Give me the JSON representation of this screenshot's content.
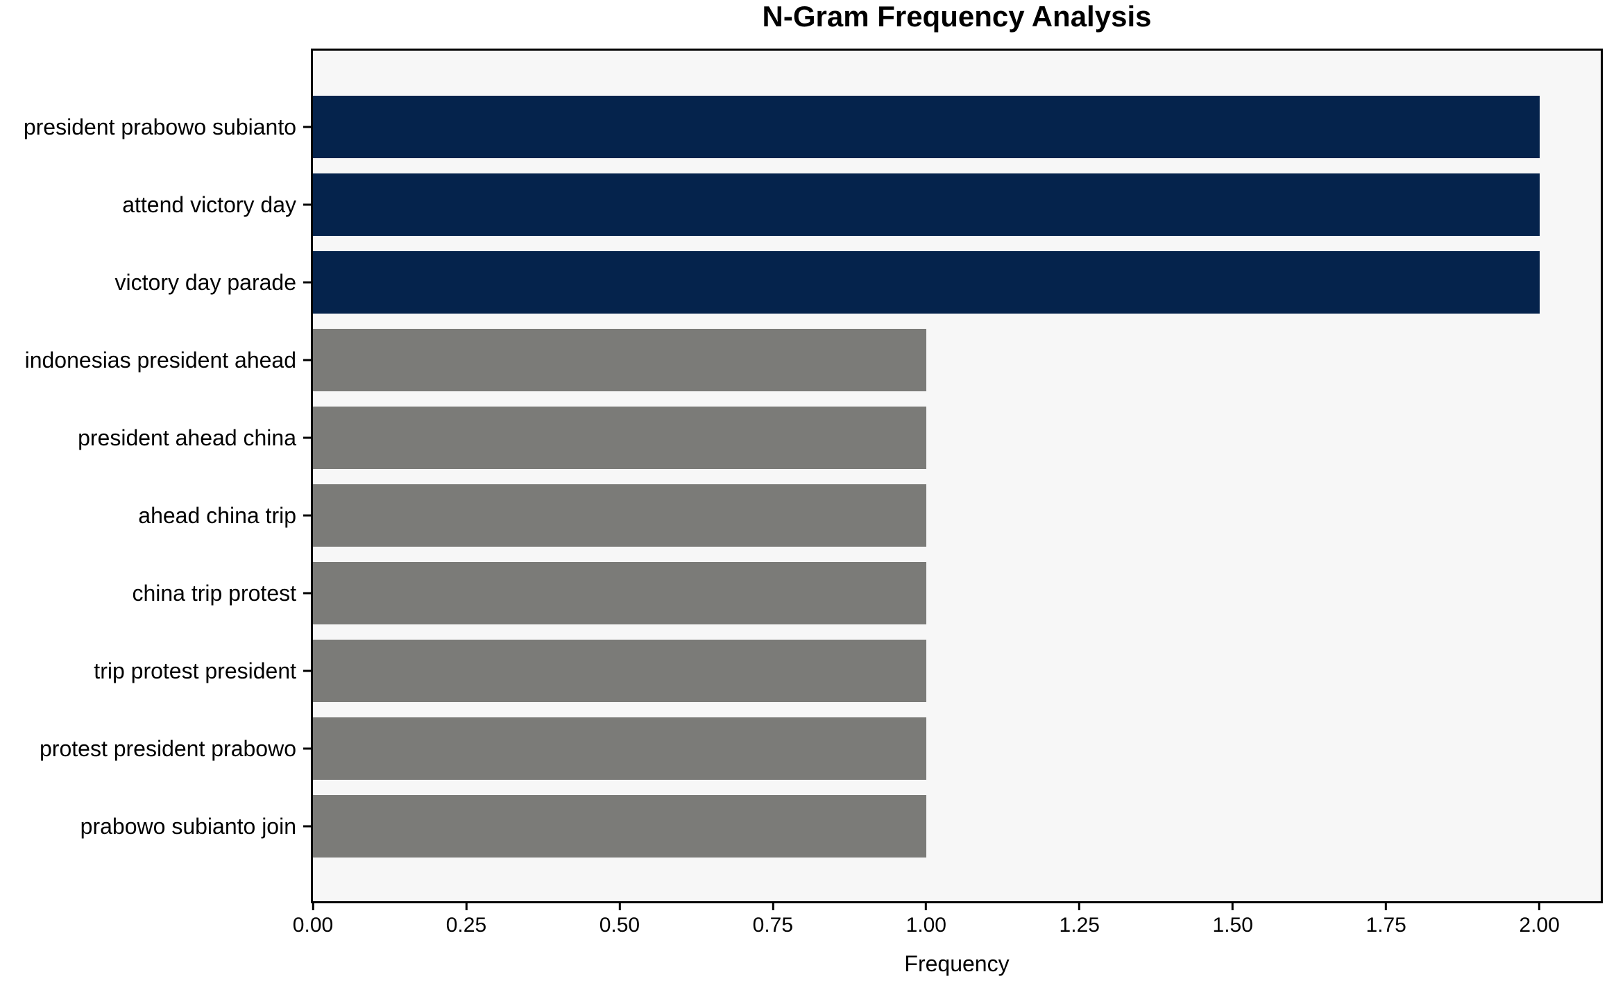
{
  "chart_data": {
    "type": "bar",
    "orientation": "horizontal",
    "title": "N-Gram Frequency Analysis",
    "xlabel": "Frequency",
    "ylabel": "",
    "categories": [
      "president prabowo subianto",
      "attend victory day",
      "victory day parade",
      "indonesias president ahead",
      "president ahead china",
      "ahead china trip",
      "china trip protest",
      "trip protest president",
      "protest president prabowo",
      "prabowo subianto join"
    ],
    "values": [
      2,
      2,
      2,
      1,
      1,
      1,
      1,
      1,
      1,
      1
    ],
    "bar_colors": [
      "#05234c",
      "#05234c",
      "#05234c",
      "#7b7b78",
      "#7b7b78",
      "#7b7b78",
      "#7b7b78",
      "#7b7b78",
      "#7b7b78",
      "#7b7b78"
    ],
    "xlim": [
      0,
      2.1
    ],
    "xticks": [
      {
        "value": 0.0,
        "label": "0.00"
      },
      {
        "value": 0.25,
        "label": "0.25"
      },
      {
        "value": 0.5,
        "label": "0.50"
      },
      {
        "value": 0.75,
        "label": "0.75"
      },
      {
        "value": 1.0,
        "label": "1.00"
      },
      {
        "value": 1.25,
        "label": "1.25"
      },
      {
        "value": 1.5,
        "label": "1.50"
      },
      {
        "value": 1.75,
        "label": "1.75"
      },
      {
        "value": 2.0,
        "label": "2.00"
      }
    ],
    "grid": false,
    "legend": "none",
    "colors": {
      "highlight_bar": "#05234c",
      "default_bar": "#7b7b78",
      "plot_background": "#f7f7f7",
      "figure_background": "#ffffff",
      "spine": "#000000",
      "text": "#000000"
    }
  }
}
